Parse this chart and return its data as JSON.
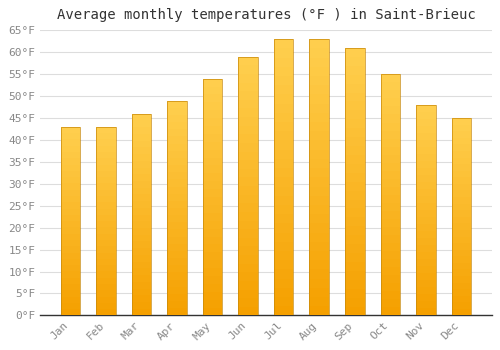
{
  "title": "Average monthly temperatures (°F ) in Saint-Brieuc",
  "months": [
    "Jan",
    "Feb",
    "Mar",
    "Apr",
    "May",
    "Jun",
    "Jul",
    "Aug",
    "Sep",
    "Oct",
    "Nov",
    "Dec"
  ],
  "values": [
    43,
    43,
    46,
    49,
    54,
    59,
    63,
    63,
    61,
    55,
    48,
    45
  ],
  "bar_color_top": "#FFD050",
  "bar_color_bottom": "#F5A000",
  "bar_edge_color": "#C8890A",
  "ylim": [
    0,
    65
  ],
  "yticks": [
    0,
    5,
    10,
    15,
    20,
    25,
    30,
    35,
    40,
    45,
    50,
    55,
    60,
    65
  ],
  "ytick_labels": [
    "0°F",
    "5°F",
    "10°F",
    "15°F",
    "20°F",
    "25°F",
    "30°F",
    "35°F",
    "40°F",
    "45°F",
    "50°F",
    "55°F",
    "60°F",
    "65°F"
  ],
  "background_color": "#ffffff",
  "grid_color": "#dddddd",
  "title_fontsize": 10,
  "tick_fontsize": 8,
  "tick_color": "#888888",
  "axis_color": "#333333",
  "font_family": "monospace",
  "bar_width": 0.55
}
